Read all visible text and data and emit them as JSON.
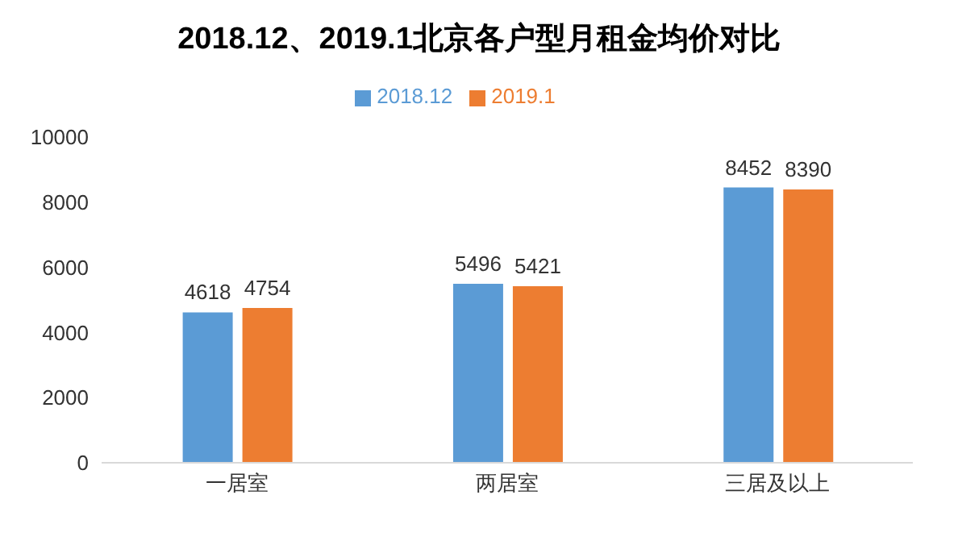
{
  "chart_data": {
    "type": "bar",
    "title": "2018.12、2019.1北京各户型月租金均价对比",
    "categories": [
      "一居室",
      "两居室",
      "三居及以上"
    ],
    "series": [
      {
        "name": "2018.12",
        "color": "#5b9bd5",
        "values": [
          4618,
          5496,
          8452
        ]
      },
      {
        "name": "2019.1",
        "color": "#ed7d31",
        "values": [
          4754,
          5421,
          8390
        ]
      }
    ],
    "ylim": [
      0,
      10000
    ],
    "yticks": [
      0,
      2000,
      4000,
      6000,
      8000,
      10000
    ],
    "grid": false,
    "legend": "top",
    "data_labels": true
  }
}
